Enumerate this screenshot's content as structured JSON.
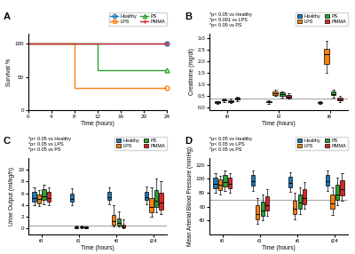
{
  "chart_data": [
    {
      "type": "step",
      "title": "A",
      "x_label": "Time (hours)",
      "y_label": "Survival %",
      "x": [
        0,
        6,
        8,
        12,
        16,
        24
      ],
      "series": [
        {
          "name": "Healthy",
          "marker": "o",
          "values": [
            100,
            100,
            100,
            100,
            100,
            100
          ]
        },
        {
          "name": "LPS",
          "marker": "o",
          "values": [
            100,
            100,
            33,
            33,
            33,
            33
          ]
        },
        {
          "name": "PS",
          "marker": "^",
          "values": [
            100,
            100,
            100,
            60,
            60,
            60
          ]
        },
        {
          "name": "PMMA",
          "marker": "+",
          "values": [
            100,
            100,
            100,
            100,
            100,
            100
          ]
        }
      ],
      "xlim": [
        0,
        24
      ],
      "xticks": [
        0,
        4,
        8,
        12,
        16,
        20,
        24
      ],
      "ylim": [
        0,
        115
      ],
      "yticks": [
        0,
        50,
        100
      ],
      "legend": "upper right"
    },
    {
      "type": "box",
      "title": "B",
      "x_label": "Time (hours)",
      "y_label": "Creatinine (mg/dl)",
      "categories": [
        "t0",
        "t3",
        "t6"
      ],
      "series": [
        {
          "name": "Healthy",
          "marker": "o",
          "values": [
            [
              0.2,
              0.25,
              0.22,
              0.18,
              0.3,
              0.28
            ],
            [
              0.22,
              0.28,
              0.25,
              0.18,
              0.32,
              0.26
            ],
            [
              0.2,
              0.27,
              0.24,
              0.17,
              0.3,
              0.22
            ]
          ]
        },
        {
          "name": "LPS",
          "marker": "o",
          "values": [
            [
              0.3,
              0.38,
              0.35,
              0.25,
              0.4,
              0.33
            ],
            [
              0.55,
              0.75,
              0.65,
              0.5,
              0.8,
              0.6
            ],
            [
              1.8,
              2.6,
              2.2,
              1.5,
              2.9,
              2.4
            ]
          ]
        },
        {
          "name": "PS",
          "marker": "^",
          "values": [
            [
              0.25,
              0.35,
              0.3,
              0.2,
              0.38,
              0.28
            ],
            [
              0.5,
              0.68,
              0.6,
              0.45,
              0.72,
              0.55
            ],
            [
              0.52,
              0.72,
              0.62,
              0.45,
              0.78,
              0.58
            ]
          ]
        },
        {
          "name": "PMMA",
          "marker": "+",
          "values": [
            [
              0.35,
              0.45,
              0.4,
              0.3,
              0.48,
              0.38
            ],
            [
              0.42,
              0.58,
              0.5,
              0.38,
              0.62,
              0.48
            ],
            [
              0.3,
              0.45,
              0.38,
              0.25,
              0.5,
              0.35
            ]
          ]
        }
      ],
      "ylim": [
        -0.1,
        3.2
      ],
      "yticks": [
        0.0,
        0.5,
        1.0,
        1.5,
        2.0,
        2.5,
        3.0
      ],
      "ref_line": 0.4,
      "notes": [
        "*p< 0.05 vs Healthy",
        "*p< 0.001 vs LPS",
        "*p< 0.05 vs PS"
      ],
      "legend": "upper right"
    },
    {
      "type": "box",
      "title": "C",
      "x_label": "Time (hours)",
      "y_label": "Urine Output (ml/kg/h)",
      "categories": [
        "t0",
        "t3",
        "t6",
        "t24"
      ],
      "series": [
        {
          "name": "Healthy",
          "marker": "o",
          "values": [
            [
              4.5,
              6.5,
              5.5,
              4.0,
              7.0,
              5.0
            ],
            [
              4.5,
              6.2,
              5.2,
              4.0,
              6.8,
              4.8
            ],
            [
              4.8,
              6.5,
              5.5,
              4.2,
              7.0,
              5.2
            ],
            [
              4.8,
              6.5,
              5.5,
              4.2,
              7.2,
              5.3
            ]
          ]
        },
        {
          "name": "LPS",
          "marker": "o",
          "values": [
            [
              4.2,
              6.0,
              5.2,
              3.8,
              6.5,
              4.8
            ],
            [
              0.1,
              0.35,
              0.22,
              0.05,
              0.48,
              0.18
            ],
            [
              0.5,
              2.5,
              1.5,
              0.3,
              4.0,
              1.0
            ],
            [
              2.5,
              5.5,
              4.0,
              2.0,
              7.0,
              3.5
            ]
          ]
        },
        {
          "name": "PS",
          "marker": "^",
          "values": [
            [
              4.8,
              7.0,
              5.8,
              4.2,
              7.5,
              5.3
            ],
            [
              0.12,
              0.38,
              0.24,
              0.08,
              0.5,
              0.2
            ],
            [
              0.5,
              2.0,
              1.0,
              0.3,
              3.0,
              0.8
            ],
            [
              3.5,
              7.0,
              5.0,
              2.8,
              8.5,
              4.5
            ]
          ]
        },
        {
          "name": "PMMA",
          "marker": "+",
          "values": [
            [
              4.5,
              6.5,
              5.4,
              4.0,
              7.0,
              5.0
            ],
            [
              0.08,
              0.32,
              0.18,
              0.04,
              0.42,
              0.15
            ],
            [
              0.1,
              0.8,
              0.5,
              0.05,
              1.5,
              0.3
            ],
            [
              3.0,
              6.5,
              4.8,
              2.5,
              8.0,
              4.2
            ]
          ]
        }
      ],
      "ylim": [
        -1.0,
        12.0
      ],
      "yticks": [
        0,
        2,
        4,
        6,
        8,
        10
      ],
      "ref_line": 0.5,
      "notes": [
        "*p< 0.05 vs Healthy",
        "*p< 0.05 vs LPS",
        "*p< 0.05 vs PS"
      ],
      "legend": "upper right"
    },
    {
      "type": "box",
      "title": "D",
      "x_label": "Time (hours)",
      "y_label": "Mean Arterial Blood Pressure (mmHg)",
      "categories": [
        "t0",
        "t3",
        "t6",
        "t24"
      ],
      "series": [
        {
          "name": "Healthy",
          "marker": "o",
          "values": [
            [
              85,
              105,
              95,
              80,
              108,
              92
            ],
            [
              88,
              108,
              98,
              83,
              112,
              95
            ],
            [
              86,
              106,
              96,
              81,
              110,
              93
            ],
            [
              88,
              108,
              98,
              83,
              112,
              95
            ]
          ]
        },
        {
          "name": "LPS",
          "marker": "o",
          "values": [
            [
              82,
              102,
              92,
              78,
              105,
              90
            ],
            [
              40,
              65,
              52,
              35,
              72,
              48
            ],
            [
              48,
              72,
              60,
              42,
              80,
              55
            ],
            [
              55,
              80,
              68,
              48,
              88,
              62
            ]
          ]
        },
        {
          "name": "PS",
          "marker": "^",
          "values": [
            [
              88,
              108,
              98,
              83,
              112,
              94
            ],
            [
              45,
              70,
              58,
              40,
              78,
              52
            ],
            [
              55,
              80,
              68,
              50,
              88,
              63
            ],
            [
              68,
              95,
              80,
              62,
              102,
              75
            ]
          ]
        },
        {
          "name": "PMMA",
          "marker": "+",
          "values": [
            [
              85,
              105,
              95,
              80,
              108,
              92
            ],
            [
              52,
              78,
              65,
              47,
              85,
              60
            ],
            [
              62,
              88,
              75,
              57,
              95,
              70
            ],
            [
              75,
              102,
              88,
              68,
              108,
              82
            ]
          ]
        }
      ],
      "ylim": [
        20,
        130
      ],
      "yticks": [
        40,
        60,
        80,
        100,
        120
      ],
      "ref_line": 70,
      "notes": [
        "*p< 0.05 vs Healthy",
        "*p< 0.05 vs LPS",
        "*p< 0.05 vs PS"
      ],
      "legend": "upper right"
    }
  ]
}
